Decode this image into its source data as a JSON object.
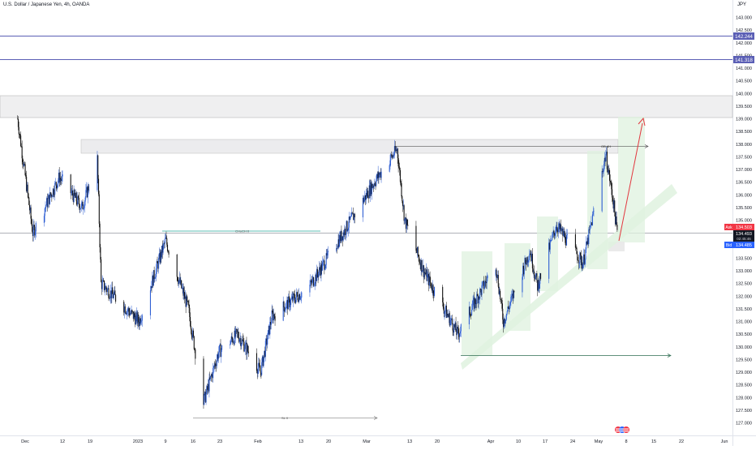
{
  "symbol": {
    "title": "U.S. Dollar / Japanese Yen, 4h, OANDA",
    "currency": "JPY"
  },
  "price_axis": {
    "ticks": [
      "143.000",
      "142.500",
      "142.000",
      "141.500",
      "141.000",
      "140.500",
      "140.000",
      "139.500",
      "139.000",
      "138.500",
      "138.000",
      "137.500",
      "137.000",
      "136.500",
      "136.000",
      "135.500",
      "135.000",
      "134.500",
      "134.000",
      "133.500",
      "133.000",
      "132.500",
      "132.000",
      "131.500",
      "131.000",
      "130.500",
      "130.000",
      "129.500",
      "129.000",
      "128.500",
      "128.000",
      "127.500",
      "127.000"
    ],
    "level_labels": [
      {
        "text": "142.244",
        "color": "#5b5fb5"
      },
      {
        "text": "141.318",
        "color": "#5b5fb5"
      }
    ],
    "ask": {
      "tag": "Ask",
      "value": "134.503",
      "color": "#f23645"
    },
    "last": {
      "value": "134.493",
      "countdown": "02:45:46"
    },
    "bid": {
      "tag": "Bid",
      "value": "134.485",
      "color": "#2962ff"
    }
  },
  "time_axis": {
    "ticks": [
      "Dec",
      "12",
      "19",
      "2023",
      "9",
      "16",
      "23",
      "Feb",
      "13",
      "20",
      "Mar",
      "13",
      "20",
      "Apr",
      "10",
      "17",
      "24",
      "May",
      "8",
      "15",
      "22",
      "Jun"
    ]
  },
  "annotations": {
    "choch_label": "CHoCH 0",
    "ob_label": "OB 4H",
    "sl_label": "SL 0"
  },
  "chart_data": {
    "type": "candlestick",
    "title": "U.S. Dollar / Japanese Yen, 4h, OANDA",
    "y_unit": "JPY",
    "ylim": [
      127.0,
      143.2
    ],
    "x_range": [
      "Dec 2022",
      "Jun 2023"
    ],
    "price_path_approx": [
      {
        "date": "2022-11-28",
        "close": 139.0
      },
      {
        "date": "2022-12-02",
        "close": 134.5
      },
      {
        "date": "2022-12-09",
        "close": 136.7
      },
      {
        "date": "2022-12-15",
        "close": 135.5
      },
      {
        "date": "2022-12-19",
        "close": 137.4
      },
      {
        "date": "2022-12-20",
        "close": 132.5
      },
      {
        "date": "2022-12-30",
        "close": 131.0
      },
      {
        "date": "2023-01-06",
        "close": 134.2
      },
      {
        "date": "2023-01-12",
        "close": 131.5
      },
      {
        "date": "2023-01-16",
        "close": 127.8
      },
      {
        "date": "2023-01-20",
        "close": 129.8
      },
      {
        "date": "2023-01-25",
        "close": 130.5
      },
      {
        "date": "2023-01-31",
        "close": 129.0
      },
      {
        "date": "2023-02-03",
        "close": 131.2
      },
      {
        "date": "2023-02-13",
        "close": 132.4
      },
      {
        "date": "2023-02-21",
        "close": 134.3
      },
      {
        "date": "2023-03-02",
        "close": 136.5
      },
      {
        "date": "2023-03-08",
        "close": 137.8
      },
      {
        "date": "2023-03-10",
        "close": 135.0
      },
      {
        "date": "2023-03-15",
        "close": 133.0
      },
      {
        "date": "2023-03-24",
        "close": 130.5
      },
      {
        "date": "2023-04-03",
        "close": 133.3
      },
      {
        "date": "2023-04-05",
        "close": 131.0
      },
      {
        "date": "2023-04-12",
        "close": 133.8
      },
      {
        "date": "2023-04-14",
        "close": 132.4
      },
      {
        "date": "2023-04-19",
        "close": 134.8
      },
      {
        "date": "2023-04-26",
        "close": 133.3
      },
      {
        "date": "2023-05-02",
        "close": 137.6
      },
      {
        "date": "2023-05-04",
        "close": 135.7
      },
      {
        "date": "2023-05-05",
        "close": 134.49
      }
    ],
    "horizontal_levels": [
      142.244,
      141.318
    ],
    "zones": [
      {
        "from": 139.0,
        "to": 139.9
      },
      {
        "from": 137.55,
        "to": 138.2
      }
    ],
    "target_price": 138.9
  }
}
